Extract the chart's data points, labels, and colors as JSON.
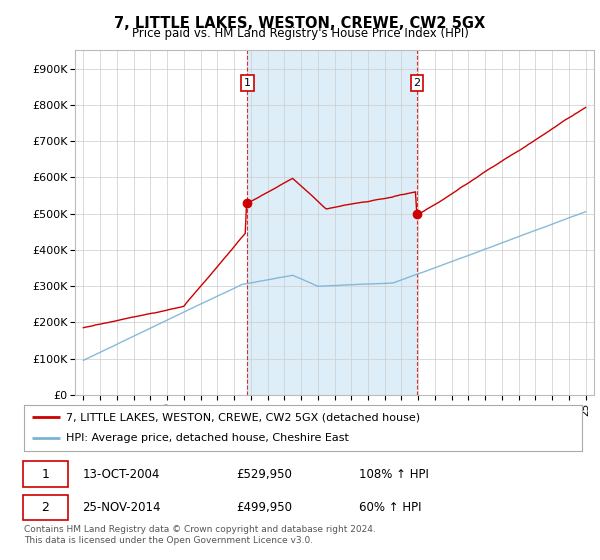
{
  "title": "7, LITTLE LAKES, WESTON, CREWE, CW2 5GX",
  "subtitle": "Price paid vs. HM Land Registry's House Price Index (HPI)",
  "legend_line1": "7, LITTLE LAKES, WESTON, CREWE, CW2 5GX (detached house)",
  "legend_line2": "HPI: Average price, detached house, Cheshire East",
  "annotation1_date": "13-OCT-2004",
  "annotation1_price": "£529,950",
  "annotation1_hpi": "108% ↑ HPI",
  "annotation2_date": "25-NOV-2014",
  "annotation2_price": "£499,950",
  "annotation2_hpi": "60% ↑ HPI",
  "footer1": "Contains HM Land Registry data © Crown copyright and database right 2024.",
  "footer2": "This data is licensed under the Open Government Licence v3.0.",
  "hpi_color": "#7ab3d4",
  "price_color": "#cc0000",
  "shade_color": "#ddeef8",
  "annotation_color": "#cc0000",
  "background_color": "#ffffff",
  "grid_color": "#cccccc",
  "sale1_x": 2004.79,
  "sale1_y": 529950,
  "sale2_x": 2014.92,
  "sale2_y": 499950,
  "ylim": [
    0,
    950000
  ],
  "xlim": [
    1994.5,
    2025.5
  ]
}
